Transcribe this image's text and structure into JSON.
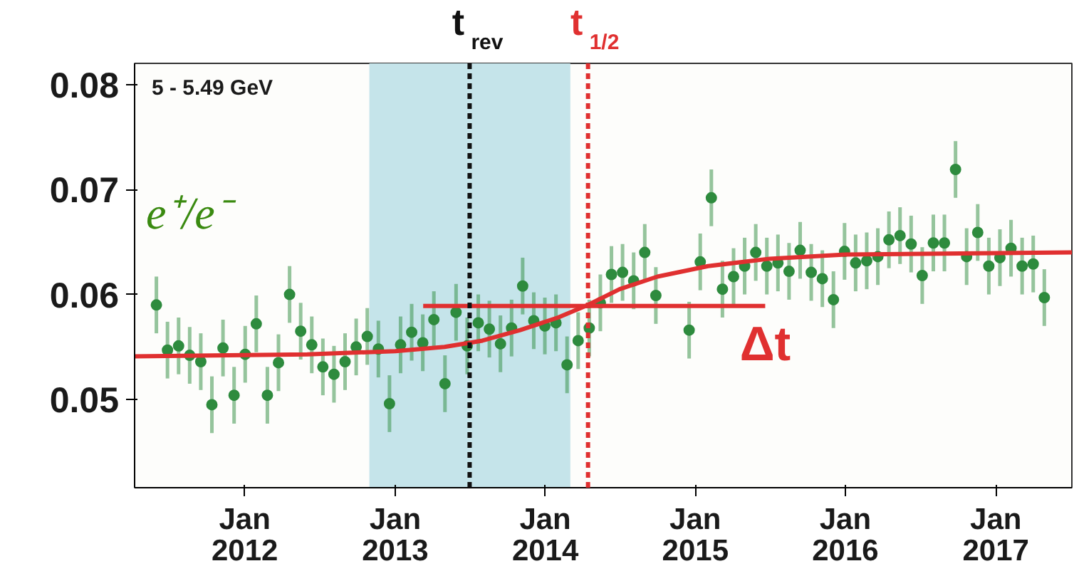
{
  "chart_data": {
    "type": "scatter",
    "ylabel": "e⁺/e⁻",
    "grid": false,
    "xlim": [
      "2011-04-08",
      "2017-07-05"
    ],
    "ylim": [
      0.0416,
      0.082
    ],
    "xticks": [
      {
        "value": "2012-01-01",
        "label": "Jan\n2012"
      },
      {
        "value": "2013-01-01",
        "label": "Jan\n2013"
      },
      {
        "value": "2014-01-01",
        "label": "Jan\n2014"
      },
      {
        "value": "2015-01-01",
        "label": "Jan\n2015"
      },
      {
        "value": "2016-01-01",
        "label": "Jan\n2016"
      },
      {
        "value": "2017-01-01",
        "label": "Jan\n2017"
      }
    ],
    "yticks": [
      0.05,
      0.06,
      0.07,
      0.08
    ],
    "annotations": [
      "5 - 5.49 GeV",
      "Δt"
    ],
    "bands": [
      {
        "axis": "x",
        "from": "2012-10-30",
        "to": "2014-03-03",
        "color": "#c5e4ea"
      }
    ],
    "ref_lines": [
      {
        "axis": "x",
        "value": "2013-07-01",
        "label": "t$_{rev}$",
        "color": "#111111",
        "line_style": "dashed"
      },
      {
        "axis": "x",
        "value": "2014-04-15",
        "label": "t$_{1/2}$",
        "color": "#e03030",
        "line_style": "dashed"
      }
    ],
    "series": [
      {
        "marker": "circle",
        "color": "#2e8b3e",
        "x": [
          "2011-05-31",
          "2011-06-27",
          "2011-07-24",
          "2011-08-20",
          "2011-09-16",
          "2011-10-13",
          "2011-11-09",
          "2011-12-06",
          "2012-01-02",
          "2012-01-29",
          "2012-02-25",
          "2012-03-23",
          "2012-04-19",
          "2012-05-16",
          "2012-06-12",
          "2012-07-09",
          "2012-08-05",
          "2012-09-01",
          "2012-09-28",
          "2012-10-25",
          "2012-11-21",
          "2012-12-18",
          "2013-01-14",
          "2013-02-10",
          "2013-03-09",
          "2013-04-05",
          "2013-05-02",
          "2013-05-29",
          "2013-06-25",
          "2013-07-22",
          "2013-08-18",
          "2013-09-14",
          "2013-10-11",
          "2013-11-07",
          "2013-12-04",
          "2013-12-31",
          "2014-01-27",
          "2014-02-23",
          "2014-03-22",
          "2014-04-18",
          "2014-05-15",
          "2014-06-11",
          "2014-07-08",
          "2014-08-04",
          "2014-08-31",
          "2014-09-27",
          "2014-12-17",
          "2015-01-13",
          "2015-02-09",
          "2015-03-08",
          "2015-04-04",
          "2015-05-01",
          "2015-05-28",
          "2015-06-24",
          "2015-07-21",
          "2015-08-17",
          "2015-09-13",
          "2015-10-10",
          "2015-11-06",
          "2015-12-03",
          "2015-12-30",
          "2016-01-26",
          "2016-02-22",
          "2016-03-20",
          "2016-04-16",
          "2016-05-13",
          "2016-06-09",
          "2016-07-06",
          "2016-08-02",
          "2016-08-29",
          "2016-09-25",
          "2016-10-22",
          "2016-11-18",
          "2016-12-15",
          "2017-01-11",
          "2017-02-07",
          "2017-03-06",
          "2017-04-02",
          "2017-04-29"
        ],
        "values": [
          0.059,
          0.0547,
          0.0551,
          0.0542,
          0.0536,
          0.0495,
          0.0549,
          0.0504,
          0.0543,
          0.0572,
          0.0504,
          0.0535,
          0.06,
          0.0565,
          0.0552,
          0.0531,
          0.0524,
          0.0536,
          0.055,
          0.056,
          0.0548,
          0.0496,
          0.0552,
          0.0564,
          0.0554,
          0.0576,
          0.0515,
          0.0583,
          0.0551,
          0.0573,
          0.0567,
          0.0553,
          0.0568,
          0.0608,
          0.0575,
          0.057,
          0.0573,
          0.0533,
          0.0556,
          0.0568,
          0.0592,
          0.0619,
          0.0621,
          0.0613,
          0.064,
          0.0599,
          0.0566,
          0.0631,
          0.0692,
          0.0605,
          0.0617,
          0.0627,
          0.064,
          0.0627,
          0.063,
          0.0622,
          0.0642,
          0.0621,
          0.0615,
          0.0595,
          0.0641,
          0.063,
          0.0632,
          0.0636,
          0.0652,
          0.0656,
          0.0648,
          0.0618,
          0.0649,
          0.0649,
          0.0719,
          0.0636,
          0.0659,
          0.0627,
          0.0635,
          0.0644,
          0.0627,
          0.0629,
          0.0597
        ],
        "errors": [
          0.0027,
          0.0027,
          0.0027,
          0.0027,
          0.0027,
          0.0027,
          0.0027,
          0.0027,
          0.0027,
          0.0027,
          0.0027,
          0.0027,
          0.0027,
          0.0027,
          0.0027,
          0.0027,
          0.0027,
          0.0027,
          0.0027,
          0.0027,
          0.0027,
          0.0027,
          0.0027,
          0.0027,
          0.0027,
          0.0027,
          0.0027,
          0.0027,
          0.0027,
          0.0027,
          0.0027,
          0.0027,
          0.0027,
          0.0027,
          0.0027,
          0.0027,
          0.0027,
          0.0027,
          0.0027,
          0.0027,
          0.0027,
          0.0027,
          0.0027,
          0.0027,
          0.0027,
          0.0027,
          0.0027,
          0.0027,
          0.0027,
          0.0027,
          0.0027,
          0.0027,
          0.0027,
          0.0027,
          0.0027,
          0.0027,
          0.0027,
          0.0027,
          0.0027,
          0.0027,
          0.0027,
          0.0027,
          0.0027,
          0.0027,
          0.0027,
          0.0027,
          0.0027,
          0.0027,
          0.0027,
          0.0027,
          0.0027,
          0.0027,
          0.0027,
          0.0027,
          0.0027,
          0.0027,
          0.0027,
          0.0027,
          0.0027
        ]
      },
      {
        "type": "line",
        "color": "#e03030",
        "x": [
          "2011-04-08",
          "2012-06-01",
          "2013-01-01",
          "2013-05-01",
          "2013-08-01",
          "2013-11-01",
          "2014-02-01",
          "2014-04-15",
          "2014-07-01",
          "2014-10-01",
          "2015-02-01",
          "2015-07-01",
          "2016-01-01",
          "2017-07-05"
        ],
        "values": [
          0.0541,
          0.0543,
          0.0546,
          0.055,
          0.0556,
          0.0566,
          0.0578,
          0.059,
          0.0605,
          0.0617,
          0.0627,
          0.0634,
          0.0638,
          0.064
        ]
      },
      {
        "type": "line",
        "color": "#e03030",
        "x": [
          "2013-03-10",
          "2015-06-20"
        ],
        "values": [
          0.0589,
          0.0589
        ]
      }
    ]
  }
}
